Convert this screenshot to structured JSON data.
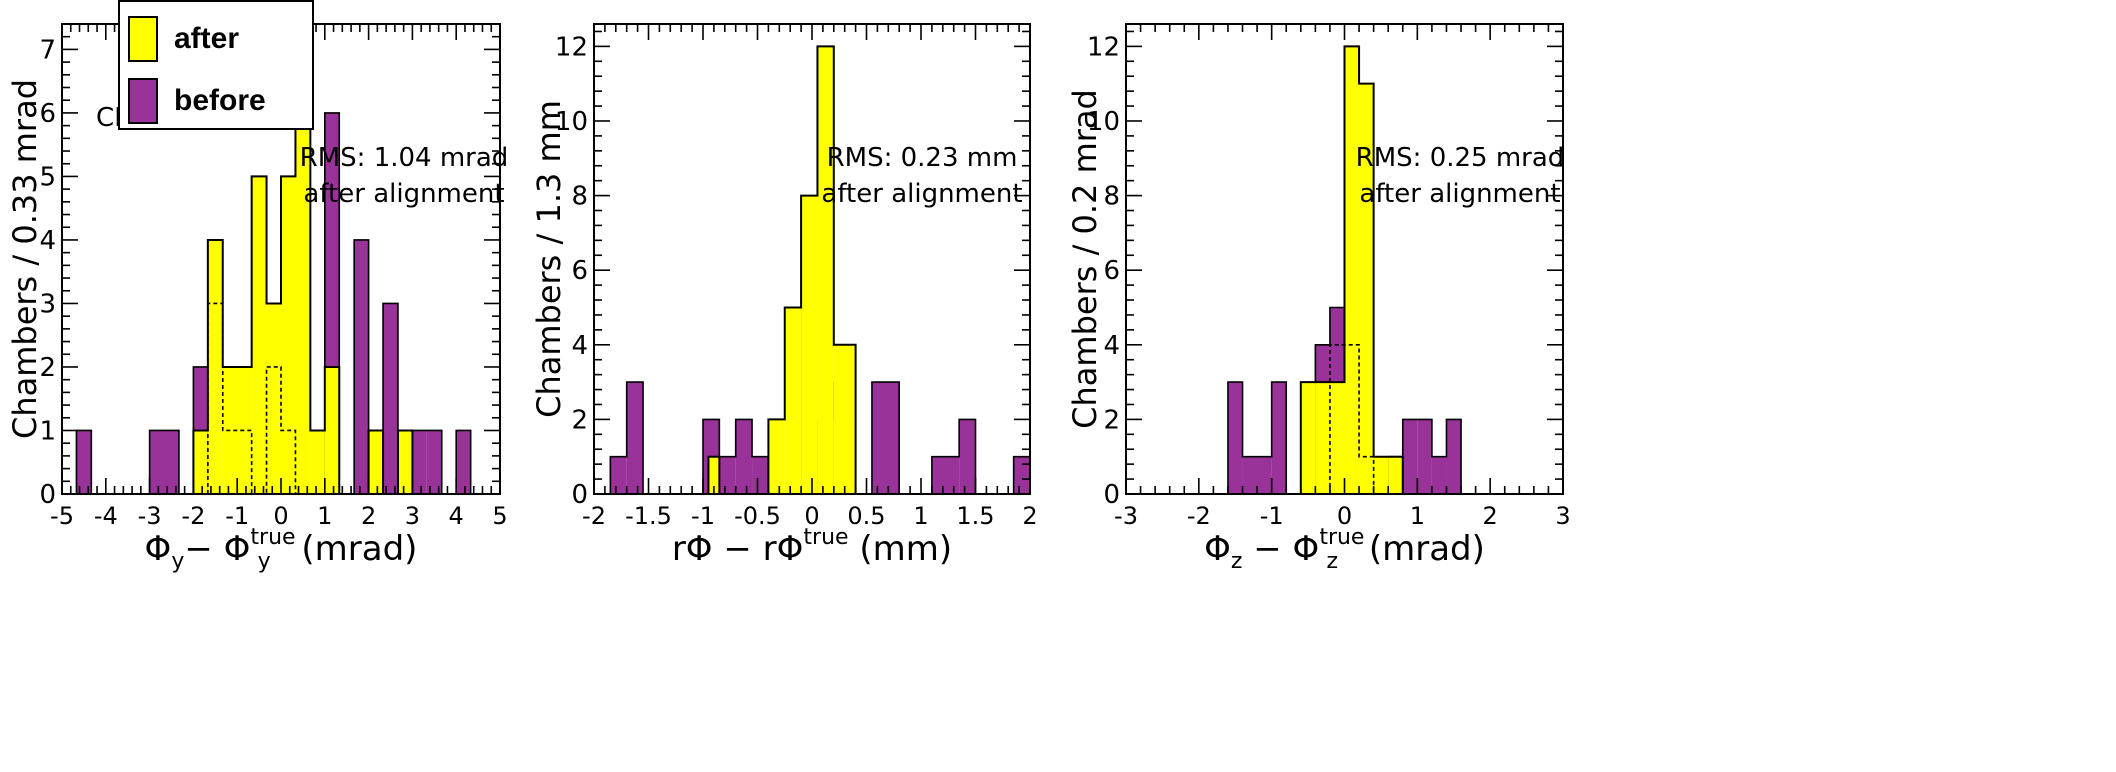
{
  "legend": {
    "items": [
      {
        "label": "after",
        "color": "#ffff00"
      },
      {
        "label": "before",
        "color": "#993399"
      }
    ]
  },
  "chart_data": [
    {
      "type": "histogram",
      "ylabel": "Chambers / 0.33 mrad",
      "xlabel": {
        "main": "Φ",
        "sub": "y",
        "mid": "− Φ",
        "sup": "true",
        "sub2": "y",
        "unit": "(mrad)"
      },
      "xlim": [
        -5,
        5
      ],
      "ylim": [
        0,
        7.4
      ],
      "xticks": [
        -5,
        -4,
        -3,
        -2,
        -1,
        0,
        1,
        2,
        3,
        4,
        5
      ],
      "yticks": [
        0,
        1,
        2,
        3,
        4,
        5,
        6,
        7
      ],
      "annotations": [
        "CMS 2008",
        "RMS: 1.04 mrad",
        "after alignment"
      ],
      "before": {
        "edges": [
          -4.67,
          -4.33,
          -3.0,
          -2.33,
          -2.0,
          -1.67,
          -1.33,
          -0.67,
          -0.33,
          0.0,
          0.33,
          0.67,
          1.0,
          1.33,
          1.67,
          2.0,
          2.33,
          2.67,
          3.0,
          3.33,
          3.67,
          4.0,
          4.33
        ],
        "counts": [
          1,
          0,
          1,
          0,
          2,
          0,
          0,
          0,
          0,
          0,
          0,
          0,
          6,
          0,
          4,
          0,
          3,
          0,
          1,
          1,
          0,
          1
        ]
      },
      "after": {
        "edges": [
          -2.0,
          -1.67,
          -1.33,
          -0.67,
          -0.33,
          0.0,
          0.33,
          0.67,
          1.0,
          1.33,
          1.67,
          2.0,
          2.33,
          2.67,
          3.0
        ],
        "counts": [
          1,
          4,
          2,
          5,
          3,
          5,
          7,
          1,
          2,
          0,
          0,
          1,
          0,
          1
        ]
      },
      "before_dotted_outline": {
        "edges": [
          -1.67,
          -1.33,
          -0.67,
          -0.33,
          0.0,
          0.33
        ],
        "counts": [
          3,
          1,
          0,
          2,
          1
        ]
      }
    },
    {
      "type": "histogram",
      "ylabel": "Chambers / 1.3 mm",
      "xlabel": {
        "main": "rΦ",
        "mid": " − rΦ",
        "sup": "true",
        "unit": "(mm)"
      },
      "xlim": [
        -2,
        2
      ],
      "ylim": [
        0,
        12.6
      ],
      "xticks": [
        -2,
        -1.5,
        -1,
        -0.5,
        0,
        0.5,
        1,
        1.5,
        2
      ],
      "yticks": [
        0,
        2,
        4,
        6,
        8,
        10,
        12
      ],
      "annotations": [
        "RMS: 0.23 mm",
        "after alignment"
      ],
      "before": {
        "edges": [
          -1.85,
          -1.7,
          -1.55,
          -1.0,
          -0.85,
          -0.7,
          -0.55,
          -0.4,
          -0.3,
          -0.2,
          -0.05,
          0.05,
          0.2,
          0.3,
          0.4,
          0.55,
          0.8,
          1.1,
          1.35,
          1.5,
          1.85,
          2.0
        ],
        "counts": [
          1,
          3,
          0,
          2,
          1,
          2,
          1,
          0,
          0,
          5,
          0,
          2,
          3,
          0,
          0,
          3,
          0,
          1,
          2,
          0,
          1
        ]
      },
      "after": {
        "edges": [
          -0.95,
          -0.85,
          -0.4,
          -0.25,
          -0.1,
          0.05,
          0.2,
          0.4
        ],
        "counts": [
          1,
          0,
          2,
          5,
          8,
          12,
          4
        ]
      }
    },
    {
      "type": "histogram",
      "ylabel": "Chambers / 0.2 mrad",
      "xlabel": {
        "main": "Φ",
        "sub": "z",
        "mid": " − Φ",
        "sup": "true",
        "sub2": "z",
        "unit": "(mrad)"
      },
      "xlim": [
        -3,
        3
      ],
      "ylim": [
        0,
        12.6
      ],
      "xticks": [
        -3,
        -2,
        -1,
        0,
        1,
        2,
        3
      ],
      "yticks": [
        0,
        2,
        4,
        6,
        8,
        10,
        12
      ],
      "annotations": [
        "RMS: 0.25 mrad",
        "after alignment"
      ],
      "before": {
        "edges": [
          -1.6,
          -1.4,
          -1.0,
          -0.8,
          -0.6,
          -0.4,
          -0.2,
          0.0,
          0.2,
          0.4,
          0.6,
          0.8,
          1.0,
          1.2,
          1.4,
          1.6
        ],
        "counts": [
          3,
          1,
          3,
          0,
          0,
          4,
          5,
          0,
          0,
          0,
          1,
          2,
          2,
          1,
          2
        ]
      },
      "after": {
        "edges": [
          -0.6,
          -0.4,
          -0.2,
          0.0,
          0.2,
          0.4,
          0.6,
          0.8
        ],
        "counts": [
          3,
          3,
          3,
          12,
          11,
          1,
          1
        ]
      },
      "before_dotted_outline": {
        "edges": [
          -0.2,
          0.0,
          0.2,
          0.4
        ],
        "counts": [
          4,
          4,
          1
        ]
      }
    }
  ]
}
